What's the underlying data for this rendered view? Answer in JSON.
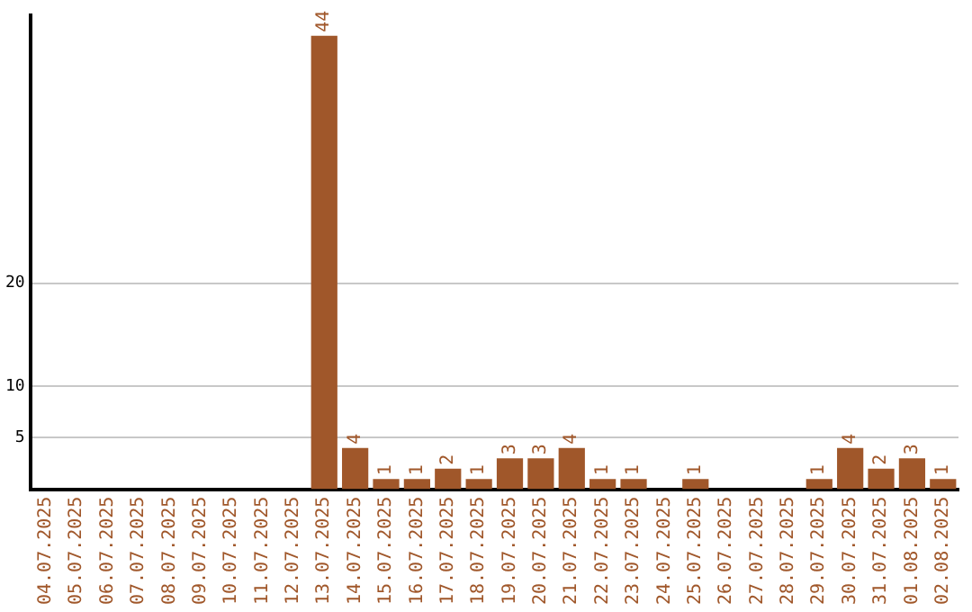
{
  "chart_data": {
    "type": "bar",
    "categories": [
      "04.07.2025",
      "05.07.2025",
      "06.07.2025",
      "07.07.2025",
      "08.07.2025",
      "09.07.2025",
      "10.07.2025",
      "11.07.2025",
      "12.07.2025",
      "13.07.2025",
      "14.07.2025",
      "15.07.2025",
      "16.07.2025",
      "17.07.2025",
      "18.07.2025",
      "19.07.2025",
      "20.07.2025",
      "21.07.2025",
      "22.07.2025",
      "23.07.2025",
      "24.07.2025",
      "25.07.2025",
      "26.07.2025",
      "27.07.2025",
      "28.07.2025",
      "29.07.2025",
      "30.07.2025",
      "31.07.2025",
      "01.08.2025",
      "02.08.2025"
    ],
    "values": [
      0,
      0,
      0,
      0,
      0,
      0,
      0,
      0,
      0,
      44,
      4,
      1,
      1,
      2,
      1,
      3,
      3,
      4,
      1,
      1,
      0,
      1,
      0,
      0,
      0,
      1,
      4,
      2,
      3,
      1
    ],
    "value_labels": [
      null,
      null,
      null,
      null,
      null,
      null,
      null,
      null,
      null,
      "44",
      "4",
      "1",
      "1",
      "2",
      "1",
      "3",
      "3",
      "4",
      "1",
      "1",
      null,
      "1",
      null,
      null,
      null,
      "1",
      "4",
      "2",
      "3",
      "1"
    ],
    "color": "#a0572a",
    "ylim": [
      0,
      46
    ],
    "yticks": [
      5,
      10,
      20
    ],
    "grid": "y"
  }
}
